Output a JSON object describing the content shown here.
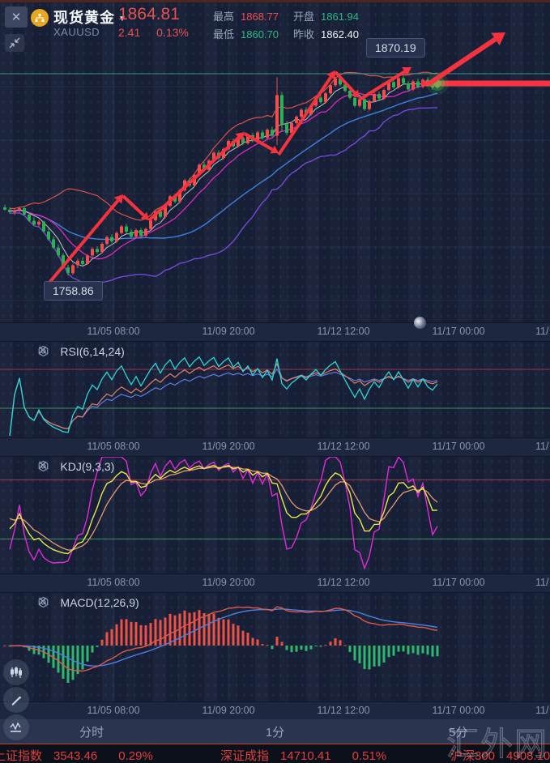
{
  "header": {
    "symbol_name": "现货黄金",
    "symbol_code": "XAUUSD",
    "last_price": "1864.81",
    "change": "2.41",
    "change_pct": "0.13%",
    "stats": {
      "high_label": "最高",
      "high": "1868.77",
      "low_label": "最低",
      "low": "1860.70",
      "open_label": "开盘",
      "open": "1861.94",
      "prev_close_label": "昨收",
      "prev_close": "1862.40"
    }
  },
  "time_axis": {
    "labels": [
      "11/05 08:00",
      "11/09 20:00",
      "11/12 12:00",
      "11/17 00:00",
      "11/"
    ],
    "positions": [
      140,
      282,
      424,
      566,
      661
    ]
  },
  "indicators": {
    "rsi": {
      "label": "RSI(6,14,24)",
      "params": [
        6,
        14,
        24
      ],
      "overbought": 70,
      "oversold": 30
    },
    "kdj": {
      "label": "KDJ(9,3,3)",
      "params": [
        9,
        3,
        3
      ],
      "overbought": 80,
      "oversold": 20
    },
    "macd": {
      "label": "MACD(12,26,9)",
      "params": [
        12,
        26,
        9
      ]
    }
  },
  "tabs": [
    {
      "label": "分时"
    },
    {
      "label": "1分"
    },
    {
      "label": "5分"
    }
  ],
  "ticker": {
    "items": [
      {
        "name": "上证指数",
        "value": "3543.46",
        "change": "0.29%"
      },
      {
        "name": "深证成指",
        "value": "14710.41",
        "change": "0.51%"
      },
      {
        "name": "沪深300",
        "value": "4908.10",
        "change": ""
      }
    ]
  },
  "watermark": "汇外网",
  "colors": {
    "up": "#ef4f4d",
    "down": "#2fae54",
    "price_band": "#fb323f",
    "level_line": "#35b49c",
    "arrow": "#f5333f",
    "bb_upper": "#e6544e",
    "bb_lower": "#7b4be2",
    "ma5": "#d9dfeb",
    "ma10": "#e62ac8",
    "ma30": "#3f86e8",
    "rsi6": "#29d8d8",
    "rsi14": "#e2806a",
    "rsi24": "#5f7de6",
    "kdj_k": "#e9e64f",
    "kdj_d": "#e89b72",
    "kdj_j": "#e22bd8",
    "macd_dif": "#e05a4c",
    "macd_dea": "#4c82e2",
    "hist_pos": "#ef5244",
    "hist_neg": "#2db86e",
    "ob_line": "#b03a52",
    "os_line": "#3f9c66",
    "grid": "rgba(140,160,200,0.10)"
  },
  "chart_data": {
    "type": "candlestick",
    "symbol": "XAUUSD",
    "current_price": 1864.81,
    "level_line_price": 1870.19,
    "labels": {
      "high_tag": "1870.19",
      "low_tag": "1758.86"
    },
    "candles": [
      [
        1796.5,
        1798.0,
        1794.8,
        1795.2
      ],
      [
        1795.2,
        1796.6,
        1793.0,
        1793.8
      ],
      [
        1793.8,
        1795.5,
        1792.2,
        1794.9
      ],
      [
        1794.9,
        1796.8,
        1793.5,
        1796.0
      ],
      [
        1796.0,
        1797.2,
        1791.8,
        1792.5
      ],
      [
        1792.5,
        1793.6,
        1788.4,
        1789.1
      ],
      [
        1789.1,
        1791.0,
        1786.2,
        1787.0
      ],
      [
        1787.0,
        1789.5,
        1785.6,
        1788.6
      ],
      [
        1788.6,
        1789.2,
        1782.4,
        1783.2
      ],
      [
        1783.2,
        1784.8,
        1778.0,
        1778.9
      ],
      [
        1778.9,
        1780.5,
        1773.5,
        1774.3
      ],
      [
        1774.3,
        1776.0,
        1769.0,
        1770.1
      ],
      [
        1770.1,
        1771.2,
        1762.5,
        1763.4
      ],
      [
        1763.4,
        1764.8,
        1758.86,
        1760.2
      ],
      [
        1760.2,
        1765.5,
        1759.3,
        1764.6
      ],
      [
        1764.6,
        1768.2,
        1763.0,
        1767.1
      ],
      [
        1767.1,
        1769.0,
        1764.2,
        1765.3
      ],
      [
        1765.3,
        1770.8,
        1764.8,
        1770.0
      ],
      [
        1770.0,
        1774.5,
        1769.2,
        1773.6
      ],
      [
        1773.6,
        1775.0,
        1770.8,
        1771.9
      ],
      [
        1771.9,
        1777.3,
        1771.0,
        1776.4
      ],
      [
        1776.4,
        1780.9,
        1775.5,
        1780.1
      ],
      [
        1780.1,
        1781.6,
        1776.9,
        1777.8
      ],
      [
        1777.8,
        1783.2,
        1777.0,
        1782.4
      ],
      [
        1782.4,
        1786.8,
        1781.6,
        1786.0
      ],
      [
        1786.0,
        1787.4,
        1782.2,
        1783.1
      ],
      [
        1783.1,
        1784.6,
        1779.4,
        1780.3
      ],
      [
        1780.3,
        1784.8,
        1779.6,
        1784.0
      ],
      [
        1784.0,
        1785.2,
        1780.0,
        1780.9
      ],
      [
        1780.9,
        1785.4,
        1780.1,
        1784.6
      ],
      [
        1784.6,
        1790.2,
        1783.8,
        1789.4
      ],
      [
        1789.4,
        1795.0,
        1788.6,
        1794.2
      ],
      [
        1794.2,
        1795.6,
        1790.4,
        1791.3
      ],
      [
        1791.3,
        1798.1,
        1790.5,
        1797.3
      ],
      [
        1797.3,
        1803.4,
        1796.5,
        1802.6
      ],
      [
        1802.6,
        1804.0,
        1798.8,
        1799.7
      ],
      [
        1799.7,
        1806.7,
        1798.9,
        1805.9
      ],
      [
        1805.9,
        1812.2,
        1805.1,
        1811.4
      ],
      [
        1811.4,
        1812.8,
        1807.6,
        1808.5
      ],
      [
        1808.5,
        1815.3,
        1807.7,
        1814.5
      ],
      [
        1814.5,
        1820.8,
        1813.7,
        1820.0
      ],
      [
        1820.0,
        1821.5,
        1816.3,
        1817.2
      ],
      [
        1817.2,
        1823.0,
        1816.4,
        1822.2
      ],
      [
        1822.2,
        1827.4,
        1821.4,
        1826.6
      ],
      [
        1826.6,
        1828.0,
        1822.8,
        1823.7
      ],
      [
        1823.7,
        1829.5,
        1822.9,
        1828.7
      ],
      [
        1828.7,
        1833.9,
        1827.9,
        1833.1
      ],
      [
        1833.1,
        1834.5,
        1829.3,
        1830.2
      ],
      [
        1830.2,
        1835.6,
        1829.4,
        1834.8
      ],
      [
        1834.8,
        1836.2,
        1830.9,
        1831.8
      ],
      [
        1831.8,
        1837.1,
        1831.0,
        1836.3
      ],
      [
        1836.3,
        1837.7,
        1832.4,
        1833.3
      ],
      [
        1833.3,
        1838.6,
        1832.5,
        1837.8
      ],
      [
        1837.8,
        1839.2,
        1833.9,
        1834.8
      ],
      [
        1834.8,
        1840.1,
        1834.0,
        1839.3
      ],
      [
        1839.3,
        1841.0,
        1835.2,
        1836.0
      ],
      [
        1836.0,
        1868.2,
        1830.8,
        1858.4
      ],
      [
        1858.4,
        1860.0,
        1838.6,
        1842.3
      ],
      [
        1842.3,
        1844.0,
        1836.2,
        1837.5
      ],
      [
        1837.5,
        1843.8,
        1836.7,
        1843.0
      ],
      [
        1843.0,
        1847.3,
        1842.2,
        1846.5
      ],
      [
        1846.5,
        1851.1,
        1845.7,
        1850.3
      ],
      [
        1850.3,
        1851.7,
        1846.9,
        1847.8
      ],
      [
        1847.8,
        1853.4,
        1847.0,
        1852.6
      ],
      [
        1852.6,
        1857.8,
        1851.8,
        1857.0
      ],
      [
        1857.0,
        1858.4,
        1853.6,
        1854.5
      ],
      [
        1854.5,
        1860.2,
        1853.7,
        1859.4
      ],
      [
        1859.4,
        1864.6,
        1858.6,
        1863.8
      ],
      [
        1863.8,
        1868.3,
        1863.0,
        1867.5
      ],
      [
        1867.5,
        1868.8,
        1863.3,
        1864.2
      ],
      [
        1864.2,
        1865.6,
        1859.9,
        1860.8
      ],
      [
        1860.8,
        1862.3,
        1856.0,
        1856.9
      ],
      [
        1856.9,
        1858.4,
        1851.6,
        1852.5
      ],
      [
        1852.5,
        1857.0,
        1851.7,
        1856.2
      ],
      [
        1856.2,
        1857.6,
        1849.8,
        1850.7
      ],
      [
        1850.7,
        1855.9,
        1849.9,
        1855.1
      ],
      [
        1855.1,
        1859.8,
        1854.3,
        1859.0
      ],
      [
        1859.0,
        1860.4,
        1855.6,
        1856.5
      ],
      [
        1856.5,
        1862.0,
        1855.7,
        1861.2
      ],
      [
        1861.2,
        1866.4,
        1860.4,
        1865.6
      ],
      [
        1865.6,
        1867.0,
        1861.8,
        1862.7
      ],
      [
        1862.7,
        1868.5,
        1861.9,
        1867.7
      ],
      [
        1867.7,
        1869.1,
        1864.0,
        1864.9
      ],
      [
        1864.9,
        1866.3,
        1860.6,
        1861.5
      ],
      [
        1861.5,
        1866.7,
        1860.7,
        1865.9
      ],
      [
        1865.9,
        1867.3,
        1862.0,
        1862.9
      ],
      [
        1862.9,
        1867.6,
        1862.1,
        1866.8
      ],
      [
        1866.8,
        1868.2,
        1863.0,
        1863.9
      ],
      [
        1863.9,
        1866.5,
        1861.4,
        1862.6
      ],
      [
        1862.6,
        1866.9,
        1861.8,
        1864.81
      ]
    ],
    "annotation_arrows": [
      [
        60,
        350,
        152,
        240,
        4,
        10
      ],
      [
        152,
        242,
        184,
        272,
        4,
        9
      ],
      [
        184,
        272,
        302,
        163,
        4,
        10
      ],
      [
        302,
        165,
        344,
        189,
        4,
        9
      ],
      [
        344,
        191,
        414,
        87,
        4,
        10
      ],
      [
        414,
        89,
        444,
        121,
        4,
        9
      ],
      [
        444,
        123,
        508,
        83,
        4,
        10
      ],
      [
        530,
        103,
        624,
        40,
        6,
        15
      ]
    ]
  }
}
